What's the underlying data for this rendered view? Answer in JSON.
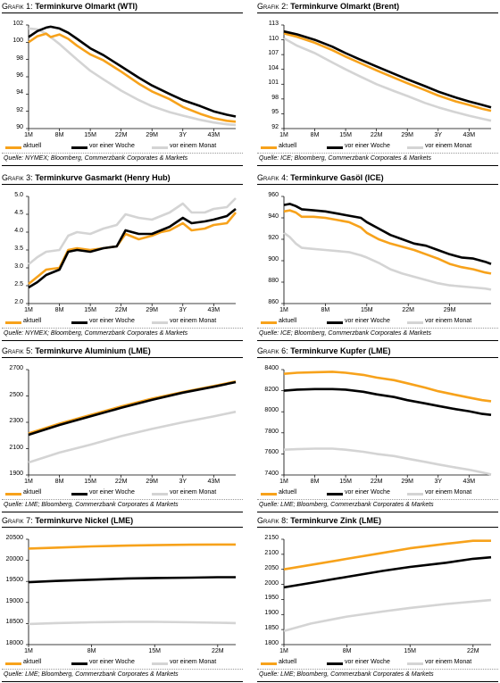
{
  "colors": {
    "aktuell": "#f7a21b",
    "woche": "#000000",
    "monat": "#d4d4d4"
  },
  "charts": [
    {
      "id": "c1",
      "grafik": "Grafik 1:",
      "title": "Terminkurve Olmarkt (WTI)",
      "yticks": [
        "102",
        "100",
        "98",
        "96",
        "94",
        "92",
        "90"
      ],
      "xticks": [
        "1M",
        "8M",
        "15M",
        "22M",
        "29M",
        "3Y",
        "43M"
      ],
      "legend": {
        "a": "aktuell",
        "w": "vor einer Woche",
        "m": "vor einem Monat"
      },
      "source": "Quelle: NYMEX; Bloomberg, Commerzbank Corporates & Markets"
    },
    {
      "id": "c2",
      "grafik": "Grafik 2:",
      "title": "Terminkurve Olmarkt (Brent)",
      "yticks": [
        "113",
        "110",
        "107",
        "104",
        "101",
        "98",
        "95",
        "92"
      ],
      "xticks": [
        "1M",
        "8M",
        "15M",
        "22M",
        "29M",
        "3Y",
        "43M"
      ],
      "legend": {
        "a": "aktuell",
        "w": "vor einer Woche",
        "m": "vor einem Monat"
      },
      "source": "Quelle: ICE; Bloomberg, Commerzbank Corporates & Markets"
    },
    {
      "id": "c3",
      "grafik": "Grafik 3:",
      "title": "Terminkurve Gasmarkt (Henry Hub)",
      "yticks": [
        "5.0",
        "4.5",
        "4.0",
        "3.5",
        "3.0",
        "2.5",
        "2.0"
      ],
      "xticks": [
        "1M",
        "8M",
        "15M",
        "22M",
        "29M",
        "3Y",
        "43M"
      ],
      "legend": {
        "a": "aktuell",
        "w": "vor einer Woche",
        "m": "vor einem Monat"
      },
      "source": "Quelle: NYMEX; Bloomberg, Commerzbank Corporates & Markets"
    },
    {
      "id": "c4",
      "grafik": "Grafik 4:",
      "title": "Terminkurve Gasöl (ICE)",
      "yticks": [
        "960",
        "940",
        "920",
        "900",
        "880",
        "860"
      ],
      "xticks": [
        "1M",
        "8M",
        "15M",
        "22M",
        "29M"
      ],
      "legend": {
        "a": "aktuell",
        "w": "vor einer Woche",
        "m": "vor einem Monat"
      },
      "source": "Quelle: ICE; Bloomberg, Commerzbank Corporates & Markets"
    },
    {
      "id": "c5",
      "grafik": "Grafik 5:",
      "title": "Terminkurve Aluminium (LME)",
      "yticks": [
        "2700",
        "2500",
        "2300",
        "2100",
        "1900"
      ],
      "xticks": [
        "1M",
        "8M",
        "15M",
        "22M",
        "29M",
        "3Y",
        "43M"
      ],
      "legend": {
        "a": "aktuell",
        "w": "vor einer Woche",
        "m": "vor einem Monat"
      },
      "source": "Quelle: LME; Bloomberg, Commerzbank Corporates & Markets"
    },
    {
      "id": "c6",
      "grafik": "Grafik 6:",
      "title": "Terminkurve Kupfer (LME)",
      "yticks": [
        "8400",
        "8200",
        "8000",
        "7800",
        "7600",
        "7400"
      ],
      "xticks": [
        "1M",
        "8M",
        "15M",
        "22M",
        "29M",
        "3Y",
        "43M"
      ],
      "legend": {
        "a": "aktuell",
        "w": "vor einer Woche",
        "m": "vor einem Monat"
      },
      "source": "Quelle: LME; Bloomberg, Commerzbank Corporates & Markets"
    },
    {
      "id": "c7",
      "grafik": "Grafik 7:",
      "title": "Terminkurve Nickel (LME)",
      "yticks": [
        "20500",
        "20000",
        "19500",
        "19000",
        "18500",
        "18000"
      ],
      "xticks": [
        "1M",
        "8M",
        "15M",
        "22M"
      ],
      "legend": {
        "a": "aktuell",
        "w": "vor einer Woche",
        "m": "vor einem Monat"
      },
      "source": "Quelle: LME; Bloomberg, Commerzbank Corporates & Markets"
    },
    {
      "id": "c8",
      "grafik": "Grafik 8:",
      "title": "Terminkurve Zink (LME)",
      "yticks": [
        "2150",
        "2100",
        "2050",
        "2000",
        "1950",
        "1900",
        "1850",
        "1800"
      ],
      "xticks": [
        "1M",
        "8M",
        "15M",
        "22M"
      ],
      "legend": {
        "a": "aktuell",
        "w": "vor einer Woche",
        "m": "vor einem Monat"
      },
      "source": "Quelle: LME; Bloomberg, Commerzbank Corporates & Markets"
    }
  ],
  "chart_data": [
    {
      "type": "line",
      "title": "Terminkurve Olmarkt (WTI)",
      "ylim": [
        90,
        102
      ],
      "x": [
        1,
        3,
        5,
        6,
        8,
        10,
        12,
        15,
        18,
        22,
        26,
        29,
        33,
        36,
        40,
        43,
        46,
        48
      ],
      "series": [
        {
          "name": "aktuell",
          "values": [
            100.0,
            100.7,
            101.0,
            100.6,
            100.9,
            100.4,
            99.6,
            98.6,
            97.9,
            96.6,
            95.2,
            94.3,
            93.4,
            92.5,
            91.7,
            91.2,
            90.9,
            90.8
          ]
        },
        {
          "name": "vor einer Woche",
          "values": [
            100.6,
            101.3,
            101.7,
            101.8,
            101.6,
            101.1,
            100.4,
            99.3,
            98.5,
            97.2,
            95.9,
            95.0,
            94.0,
            93.3,
            92.6,
            92.0,
            91.6,
            91.4
          ]
        },
        {
          "name": "vor einem Monat",
          "values": [
            101.6,
            101.5,
            101.0,
            100.6,
            99.8,
            98.9,
            98.0,
            96.7,
            95.7,
            94.4,
            93.3,
            92.6,
            91.9,
            91.5,
            91.0,
            90.7,
            90.5,
            90.4
          ]
        }
      ]
    },
    {
      "type": "line",
      "title": "Terminkurve Olmarkt (Brent)",
      "ylim": [
        92,
        113
      ],
      "x": [
        1,
        4,
        8,
        12,
        15,
        18,
        22,
        26,
        29,
        33,
        36,
        40,
        43,
        46,
        48
      ],
      "series": [
        {
          "name": "aktuell",
          "values": [
            111.3,
            110.6,
            109.4,
            107.9,
            106.6,
            105.4,
            103.8,
            102.3,
            101.2,
            99.8,
            98.7,
            97.5,
            96.8,
            96.0,
            95.6
          ]
        },
        {
          "name": "vor einer Woche",
          "values": [
            111.7,
            111.1,
            110.0,
            108.6,
            107.3,
            106.1,
            104.6,
            103.1,
            102.0,
            100.6,
            99.5,
            98.3,
            97.5,
            96.8,
            96.3
          ]
        },
        {
          "name": "vor einem Monat",
          "values": [
            110.3,
            108.8,
            107.3,
            105.4,
            104.0,
            102.7,
            101.0,
            99.6,
            98.6,
            97.2,
            96.3,
            95.3,
            94.6,
            94.0,
            93.6
          ]
        }
      ]
    },
    {
      "type": "line",
      "title": "Terminkurve Gasmarkt (Henry Hub)",
      "ylim": [
        2.0,
        5.0
      ],
      "x": [
        1,
        3,
        5,
        8,
        10,
        12,
        15,
        18,
        21,
        23,
        26,
        29,
        31,
        33,
        36,
        38,
        41,
        43,
        46,
        48
      ],
      "series": [
        {
          "name": "aktuell",
          "values": [
            2.55,
            2.75,
            2.95,
            3.0,
            3.5,
            3.55,
            3.5,
            3.55,
            3.6,
            3.95,
            3.8,
            3.9,
            4.0,
            4.05,
            4.25,
            4.05,
            4.1,
            4.2,
            4.25,
            4.55
          ]
        },
        {
          "name": "vor einer Woche",
          "values": [
            2.45,
            2.6,
            2.8,
            2.95,
            3.45,
            3.5,
            3.45,
            3.55,
            3.6,
            4.05,
            3.95,
            3.95,
            4.05,
            4.15,
            4.4,
            4.25,
            4.3,
            4.35,
            4.45,
            4.65
          ]
        },
        {
          "name": "vor einem Monat",
          "values": [
            3.1,
            3.3,
            3.45,
            3.5,
            3.9,
            4.0,
            3.95,
            4.1,
            4.2,
            4.5,
            4.4,
            4.35,
            4.45,
            4.55,
            4.8,
            4.55,
            4.55,
            4.65,
            4.7,
            4.95
          ]
        }
      ]
    },
    {
      "type": "line",
      "title": "Terminkurve Gasöl (ICE)",
      "ylim": [
        860,
        960
      ],
      "x": [
        1,
        2,
        3,
        4,
        6,
        8,
        10,
        12,
        14,
        15,
        17,
        19,
        21,
        23,
        25,
        27,
        29,
        31,
        33,
        35,
        36
      ],
      "series": [
        {
          "name": "aktuell",
          "values": [
            946,
            947,
            945,
            941,
            941,
            940,
            938,
            936,
            931,
            926,
            920,
            916,
            913,
            910,
            906,
            902,
            897,
            894,
            892,
            889,
            888
          ]
        },
        {
          "name": "vor einer Woche",
          "values": [
            952,
            953,
            951,
            948,
            947,
            946,
            944,
            942,
            940,
            936,
            930,
            924,
            920,
            916,
            914,
            910,
            906,
            903,
            902,
            899,
            897
          ]
        },
        {
          "name": "vor einem Monat",
          "values": [
            926,
            922,
            916,
            912,
            911,
            910,
            909,
            908,
            905,
            903,
            898,
            892,
            888,
            885,
            882,
            879,
            877,
            876,
            875,
            874,
            873
          ]
        }
      ]
    },
    {
      "type": "line",
      "title": "Terminkurve Aluminium (LME)",
      "ylim": [
        1900,
        2700
      ],
      "x": [
        1,
        8,
        15,
        22,
        29,
        36,
        43,
        48
      ],
      "series": [
        {
          "name": "aktuell",
          "values": [
            2215,
            2290,
            2355,
            2420,
            2480,
            2530,
            2575,
            2610
          ]
        },
        {
          "name": "vor einer Woche",
          "values": [
            2205,
            2280,
            2345,
            2410,
            2470,
            2525,
            2570,
            2605
          ]
        },
        {
          "name": "vor einem Monat",
          "values": [
            1995,
            2070,
            2130,
            2195,
            2250,
            2300,
            2345,
            2380
          ]
        }
      ]
    },
    {
      "type": "line",
      "title": "Terminkurve Kupfer (LME)",
      "ylim": [
        7400,
        8400
      ],
      "x": [
        1,
        4,
        8,
        12,
        15,
        19,
        22,
        26,
        29,
        33,
        36,
        40,
        43,
        46,
        48
      ],
      "series": [
        {
          "name": "aktuell",
          "values": [
            8360,
            8370,
            8375,
            8380,
            8370,
            8350,
            8325,
            8300,
            8270,
            8230,
            8195,
            8160,
            8135,
            8110,
            8100
          ]
        },
        {
          "name": "vor einer Woche",
          "values": [
            8200,
            8210,
            8215,
            8215,
            8210,
            8190,
            8165,
            8140,
            8110,
            8080,
            8055,
            8025,
            8005,
            7980,
            7970
          ]
        },
        {
          "name": "vor einem Monat",
          "values": [
            7640,
            7645,
            7650,
            7650,
            7640,
            7620,
            7600,
            7580,
            7555,
            7525,
            7500,
            7470,
            7450,
            7425,
            7405
          ]
        }
      ]
    },
    {
      "type": "line",
      "title": "Terminkurve Nickel (LME)",
      "ylim": [
        18000,
        20500
      ],
      "x": [
        1,
        4,
        8,
        12,
        15,
        19,
        22,
        24
      ],
      "series": [
        {
          "name": "aktuell",
          "values": [
            20280,
            20300,
            20330,
            20350,
            20360,
            20370,
            20375,
            20375
          ]
        },
        {
          "name": "vor einer Woche",
          "values": [
            19480,
            19510,
            19540,
            19570,
            19580,
            19590,
            19600,
            19600
          ]
        },
        {
          "name": "vor einem Monat",
          "values": [
            18490,
            18510,
            18530,
            18540,
            18540,
            18530,
            18520,
            18510
          ]
        }
      ]
    },
    {
      "type": "line",
      "title": "Terminkurve Zink (LME)",
      "ylim": [
        1800,
        2150
      ],
      "x": [
        1,
        4,
        8,
        12,
        15,
        19,
        22,
        24
      ],
      "series": [
        {
          "name": "aktuell",
          "values": [
            2050,
            2065,
            2085,
            2105,
            2120,
            2135,
            2145,
            2145
          ]
        },
        {
          "name": "vor einer Woche",
          "values": [
            1990,
            2005,
            2025,
            2045,
            2058,
            2072,
            2085,
            2090
          ]
        },
        {
          "name": "vor einem Monat",
          "values": [
            1845,
            1870,
            1893,
            1910,
            1922,
            1935,
            1943,
            1948
          ]
        }
      ]
    }
  ]
}
